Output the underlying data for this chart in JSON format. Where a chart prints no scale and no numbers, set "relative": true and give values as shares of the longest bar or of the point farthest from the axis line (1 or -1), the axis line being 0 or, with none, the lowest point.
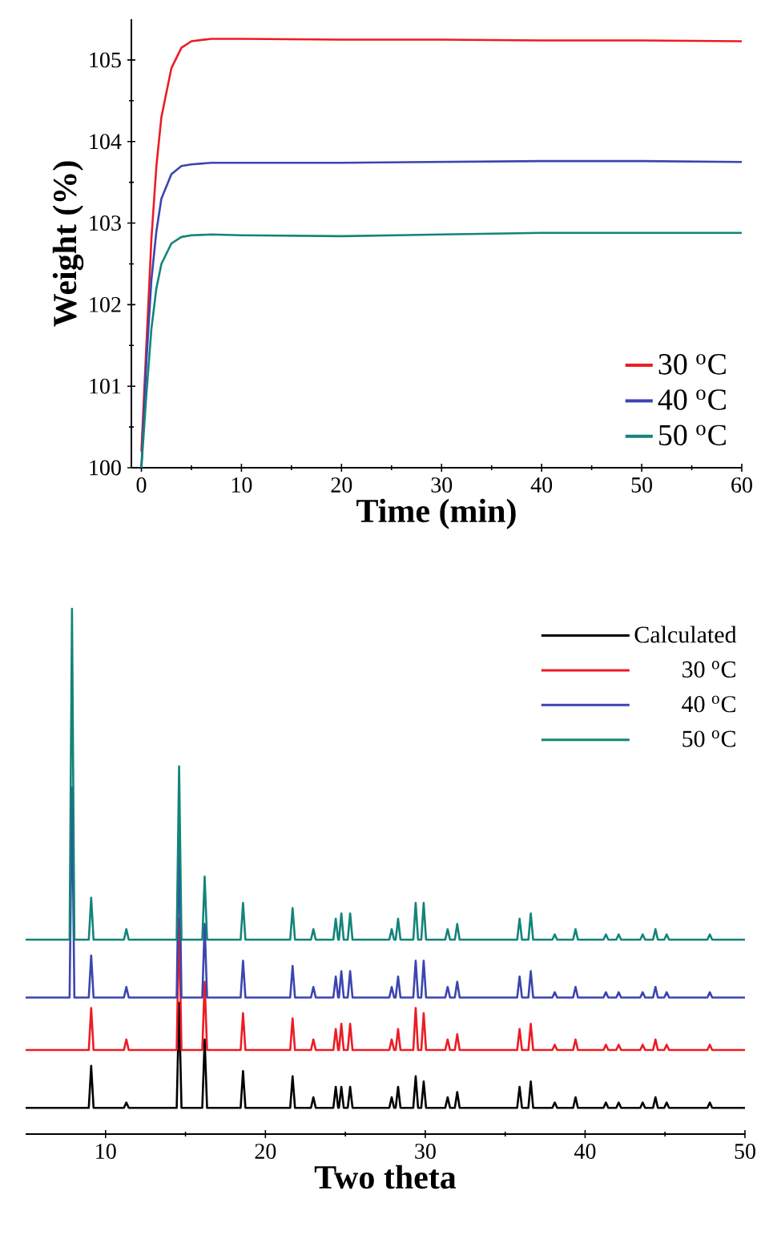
{
  "chart_data": [
    {
      "type": "line",
      "xlabel": "Time (min)",
      "ylabel": "Weight (%)",
      "xlim": [
        -1,
        60
      ],
      "ylim": [
        100,
        105.5
      ],
      "xticks": [
        0,
        10,
        20,
        30,
        40,
        50,
        60
      ],
      "yticks": [
        100,
        101,
        102,
        103,
        104,
        105
      ],
      "legend": "bottom right",
      "marker": "none",
      "x": [
        0,
        0.5,
        1,
        1.5,
        2,
        3,
        4,
        5,
        7,
        10,
        20,
        30,
        40,
        50,
        60
      ],
      "series": [
        {
          "name": "30 $^{o}$C",
          "color": "#ed1c24",
          "values": [
            100.2,
            101.5,
            102.8,
            103.7,
            104.3,
            104.9,
            105.15,
            105.23,
            105.26,
            105.26,
            105.25,
            105.25,
            105.24,
            105.24,
            105.23
          ]
        },
        {
          "name": "40 $^{o}$C",
          "color": "#3b45b0",
          "values": [
            100,
            101.3,
            102.3,
            102.9,
            103.3,
            103.6,
            103.7,
            103.72,
            103.74,
            103.74,
            103.74,
            103.75,
            103.76,
            103.76,
            103.75
          ]
        },
        {
          "name": "50 $^{o}$C",
          "color": "#13847a",
          "values": [
            100,
            100.9,
            101.7,
            102.2,
            102.5,
            102.75,
            102.83,
            102.85,
            102.86,
            102.85,
            102.84,
            102.86,
            102.88,
            102.88,
            102.88
          ]
        }
      ]
    },
    {
      "type": "line",
      "xlabel": "Two theta",
      "xlim": [
        5,
        50
      ],
      "xticks": [
        10,
        20,
        30,
        40,
        50
      ],
      "relative": true,
      "legend": "top right",
      "marker": "none",
      "x": [
        5,
        7.75,
        7.9,
        8.05,
        8.95,
        9.1,
        9.25,
        11.15,
        11.3,
        11.45,
        14.45,
        14.6,
        14.75,
        16.05,
        16.2,
        16.35,
        18.45,
        18.6,
        18.75,
        21.55,
        21.7,
        21.85,
        22.85,
        23.0,
        23.15,
        24.25,
        24.4,
        24.55,
        24.6,
        24.75,
        24.9,
        25.15,
        25.3,
        25.45,
        27.75,
        27.9,
        28.05,
        28.15,
        28.3,
        28.45,
        29.25,
        29.4,
        29.55,
        29.75,
        29.9,
        30.05,
        31.25,
        31.4,
        31.55,
        31.85,
        32.0,
        32.15,
        35.75,
        35.9,
        36.05,
        36.45,
        36.6,
        36.75,
        37.95,
        38.1,
        38.25,
        39.25,
        39.4,
        39.55,
        41.15,
        41.3,
        41.45,
        41.95,
        42.1,
        42.25,
        43.45,
        43.6,
        43.75,
        44.25,
        44.4,
        44.55,
        44.95,
        45.1,
        45.25,
        47.65,
        47.8,
        47.95,
        50
      ],
      "series": [
        {
          "name": "Calculated",
          "color": "#000000",
          "values": [
            0.05,
            0.05,
            null,
            0.05,
            0.05,
            0.13,
            0.05,
            0.05,
            0.06,
            0.05,
            0.05,
            0.25,
            0.05,
            0.05,
            0.18,
            0.05,
            0.05,
            0.12,
            0.05,
            0.05,
            0.11,
            0.05,
            0.05,
            0.07,
            0.05,
            0.05,
            0.09,
            0.05,
            0.05,
            0.09,
            0.05,
            0.05,
            0.09,
            0.05,
            0.05,
            0.07,
            0.05,
            0.05,
            0.09,
            0.05,
            0.05,
            0.11,
            0.05,
            0.05,
            0.1,
            0.05,
            0.05,
            0.07,
            0.05,
            0.05,
            0.08,
            0.05,
            0.05,
            0.09,
            0.05,
            0.05,
            0.1,
            0.05,
            0.05,
            0.06,
            0.05,
            0.05,
            0.07,
            0.05,
            0.05,
            0.06,
            0.05,
            0.05,
            0.06,
            0.05,
            0.05,
            0.06,
            0.05,
            0.05,
            0.07,
            0.05,
            0.05,
            0.06,
            0.05,
            0.05,
            0.06,
            0.05,
            0.05
          ]
        },
        {
          "name": "30 $^{o}$C",
          "color": "#ed1c24",
          "values": [
            0.16,
            0.16,
            null,
            0.16,
            0.16,
            0.24,
            0.16,
            0.16,
            0.18,
            0.16,
            0.16,
            0.41,
            0.16,
            0.16,
            0.29,
            0.16,
            0.16,
            0.23,
            0.16,
            0.16,
            0.22,
            0.16,
            0.16,
            0.18,
            0.16,
            0.16,
            0.2,
            0.16,
            0.16,
            0.21,
            0.16,
            0.16,
            0.21,
            0.16,
            0.16,
            0.18,
            0.16,
            0.16,
            0.2,
            0.16,
            0.16,
            0.24,
            0.16,
            0.16,
            0.23,
            0.16,
            0.16,
            0.18,
            0.16,
            0.16,
            0.19,
            0.16,
            0.16,
            0.2,
            0.16,
            0.16,
            0.21,
            0.16,
            0.16,
            0.17,
            0.16,
            0.16,
            0.18,
            0.16,
            0.16,
            0.17,
            0.16,
            0.16,
            0.17,
            0.16,
            0.16,
            0.17,
            0.16,
            0.16,
            0.18,
            0.16,
            0.16,
            0.17,
            0.16,
            0.16,
            0.17,
            0.16,
            0.16
          ]
        },
        {
          "name": "40 $^{o}$C",
          "color": "#3b45b0",
          "values": [
            0.26,
            0.26,
            0.66,
            0.26,
            0.26,
            0.34,
            0.26,
            0.26,
            0.28,
            0.26,
            0.26,
            0.56,
            0.26,
            0.26,
            0.4,
            0.26,
            0.26,
            0.33,
            0.26,
            0.26,
            0.32,
            0.26,
            0.26,
            0.28,
            0.26,
            0.26,
            0.3,
            0.26,
            0.26,
            0.31,
            0.26,
            0.26,
            0.31,
            0.26,
            0.26,
            0.28,
            0.26,
            0.26,
            0.3,
            0.26,
            0.26,
            0.33,
            0.26,
            0.26,
            0.33,
            0.26,
            0.26,
            0.28,
            0.26,
            0.26,
            0.29,
            0.26,
            0.26,
            0.3,
            0.26,
            0.26,
            0.31,
            0.26,
            0.26,
            0.27,
            0.26,
            0.26,
            0.28,
            0.26,
            0.26,
            0.27,
            0.26,
            0.26,
            0.27,
            0.26,
            0.26,
            0.27,
            0.26,
            0.26,
            0.28,
            0.26,
            0.26,
            0.27,
            0.26,
            0.26,
            0.27,
            0.26,
            0.26
          ]
        },
        {
          "name": "50 $^{o}$C",
          "color": "#13847a",
          "values": [
            0.37,
            0.37,
            1.0,
            0.37,
            0.37,
            0.45,
            0.37,
            0.37,
            0.39,
            0.37,
            0.37,
            0.7,
            0.37,
            0.37,
            0.49,
            0.37,
            0.37,
            0.44,
            0.37,
            0.37,
            0.43,
            0.37,
            0.37,
            0.39,
            0.37,
            0.37,
            0.41,
            0.37,
            0.37,
            0.42,
            0.37,
            0.37,
            0.42,
            0.37,
            0.37,
            0.39,
            0.37,
            0.37,
            0.41,
            0.37,
            0.37,
            0.44,
            0.37,
            0.37,
            0.44,
            0.37,
            0.37,
            0.39,
            0.37,
            0.37,
            0.4,
            0.37,
            0.37,
            0.41,
            0.37,
            0.37,
            0.42,
            0.37,
            0.37,
            0.38,
            0.37,
            0.37,
            0.39,
            0.37,
            0.37,
            0.38,
            0.37,
            0.37,
            0.38,
            0.37,
            0.37,
            0.38,
            0.37,
            0.37,
            0.39,
            0.37,
            0.37,
            0.38,
            0.37,
            0.37,
            0.38,
            0.37,
            0.37
          ]
        }
      ]
    }
  ]
}
